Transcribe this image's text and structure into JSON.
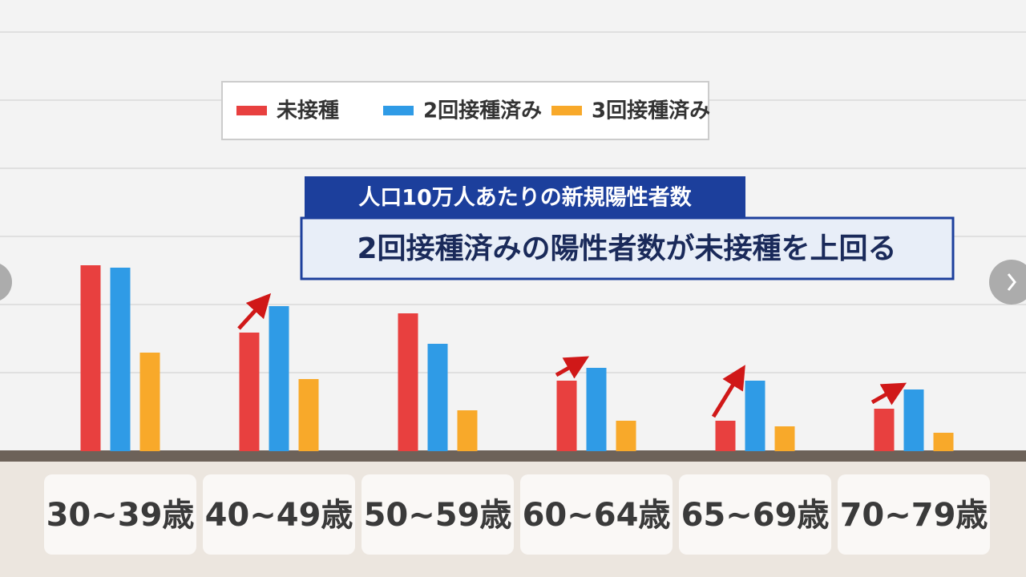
{
  "chart_data": {
    "type": "bar",
    "title": "人口10万人あたりの新規陽性者数",
    "subtitle": "2回接種済みの陽性者数が未接種を上回る",
    "categories": [
      "30~39歳",
      "40~49歳",
      "50~59歳",
      "60~64歳",
      "65~69歳",
      "70~79歳"
    ],
    "series": [
      {
        "name": "未接種",
        "color": "#e8403f",
        "values": [
          232,
          148,
          172,
          88,
          38,
          53
        ]
      },
      {
        "name": "2回接種済み",
        "color": "#2f9be6",
        "values": [
          229,
          181,
          134,
          104,
          88,
          77
        ]
      },
      {
        "name": "3回接種済み",
        "color": "#f8a92a",
        "values": [
          123,
          90,
          51,
          38,
          31,
          23
        ]
      }
    ]
  }
}
